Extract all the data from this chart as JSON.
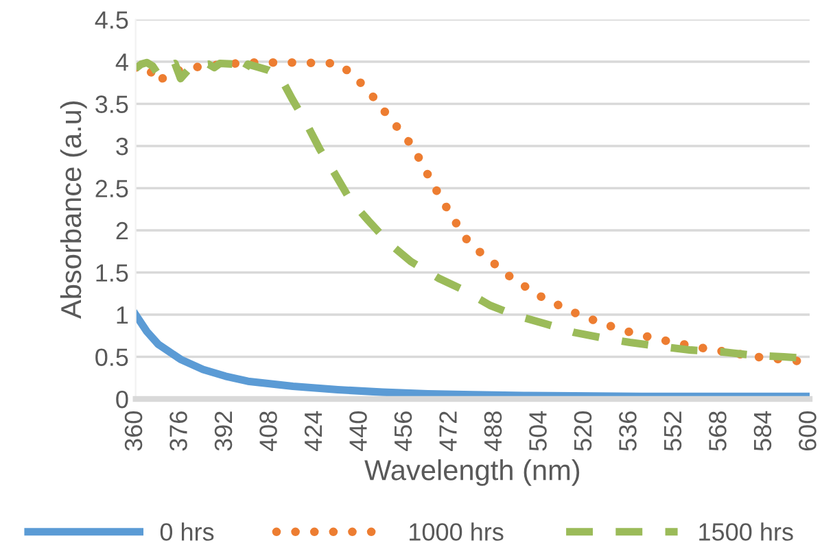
{
  "chart_data": {
    "type": "line",
    "xlabel": "Wavelength (nm)",
    "ylabel": "Absorbance (a.u)",
    "xlim": [
      360,
      600
    ],
    "xticks": [
      360,
      376,
      392,
      408,
      424,
      440,
      456,
      472,
      488,
      504,
      520,
      536,
      552,
      568,
      584,
      600
    ],
    "ylim": [
      0,
      4.5
    ],
    "yticks": [
      0,
      0.5,
      1,
      1.5,
      2,
      2.5,
      3,
      3.5,
      4,
      4.5
    ],
    "grid": "y",
    "legend": "bottom",
    "marker": "none",
    "series": [
      {
        "name": "0 hrs",
        "color": "#5b9bd5",
        "line_style": "solid",
        "x": [
          360,
          364,
          368,
          376,
          384,
          392,
          400,
          416,
          432,
          448,
          464,
          480,
          500,
          540,
          600
        ],
        "values": [
          1.0,
          0.8,
          0.65,
          0.47,
          0.35,
          0.27,
          0.21,
          0.15,
          0.11,
          0.08,
          0.06,
          0.05,
          0.04,
          0.03,
          0.03
        ]
      },
      {
        "name": "1000 hrs",
        "color": "#ed7d31",
        "line_style": "dotted",
        "x": [
          360,
          364,
          368,
          372,
          376,
          384,
          392,
          400,
          416,
          432,
          437.2,
          443,
          446.7,
          453.7,
          457.3,
          460.5,
          466.3,
          472.5,
          478.9,
          484.2,
          493.7,
          504,
          515,
          526.6,
          538.2,
          550.2,
          562.6,
          580.9,
          592.5,
          599.2
        ],
        "values": [
          3.93,
          3.95,
          3.75,
          3.88,
          3.9,
          3.95,
          3.97,
          3.99,
          3.99,
          3.98,
          3.85,
          3.65,
          3.49,
          3.2,
          3.05,
          2.88,
          2.52,
          2.17,
          1.84,
          1.7,
          1.44,
          1.22,
          1.04,
          0.89,
          0.77,
          0.68,
          0.6,
          0.5,
          0.46,
          0.44
        ]
      },
      {
        "name": "1500 hrs",
        "color": "#9bbb59",
        "line_style": "dashed",
        "x": [
          360,
          362,
          364,
          366,
          368,
          372,
          374,
          376,
          380,
          386,
          388,
          390,
          396,
          398,
          400,
          407.3,
          411.5,
          415.7,
          420.6,
          425.6,
          430.6,
          436.4,
          443,
          450.5,
          458,
          468,
          476.3,
          486.2,
          495.4,
          506.1,
          516.1,
          526.9,
          536,
          547.7,
          557.7,
          568.4,
          579.2,
          590.8,
          600
        ],
        "values": [
          3.92,
          3.97,
          3.99,
          3.95,
          3.85,
          3.95,
          3.98,
          3.8,
          3.95,
          3.97,
          3.93,
          3.98,
          3.97,
          3.85,
          3.97,
          3.9,
          3.82,
          3.56,
          3.28,
          2.96,
          2.69,
          2.36,
          2.11,
          1.84,
          1.63,
          1.43,
          1.3,
          1.11,
          0.99,
          0.89,
          0.79,
          0.72,
          0.67,
          0.62,
          0.58,
          0.56,
          0.52,
          0.5,
          0.48
        ]
      }
    ]
  }
}
